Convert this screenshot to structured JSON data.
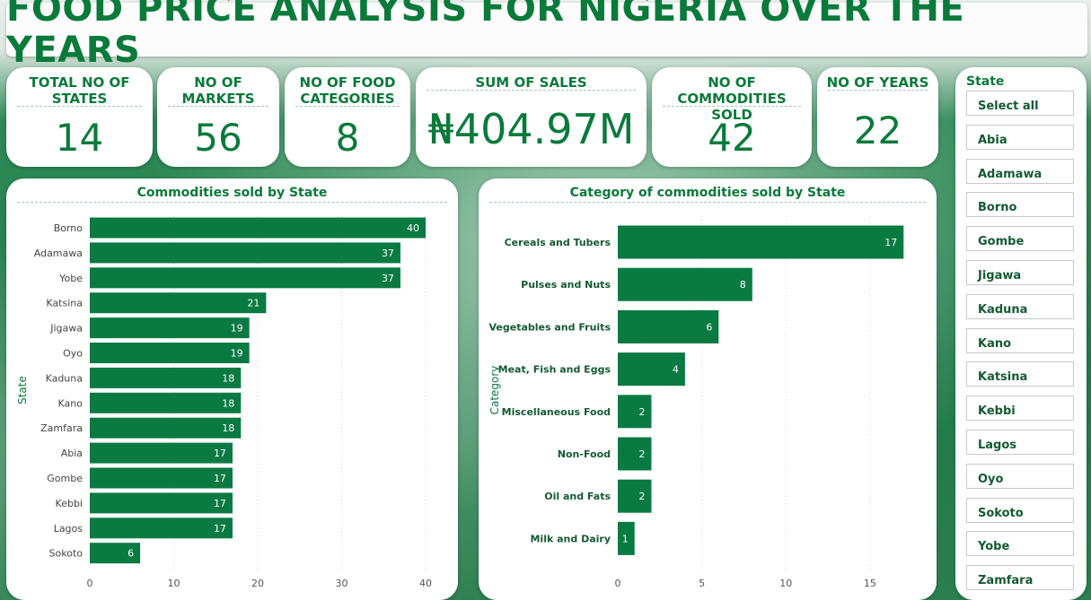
{
  "title": "FOOD PRICE ANALYSIS FOR NIGERIA OVER THE YEARS",
  "kpis": [
    {
      "label": "TOTAL NO OF STATES",
      "value": "14"
    },
    {
      "label": "NO OF MARKETS",
      "value": "56"
    },
    {
      "label": "NO OF FOOD CATEGORIES",
      "value": "8"
    },
    {
      "label": "SUM OF SALES",
      "value": "₦404.97M"
    },
    {
      "label": "NO OF COMMODITIES SOLD",
      "value": "42"
    },
    {
      "label": "NO OF YEARS",
      "value": "22"
    }
  ],
  "slicer": {
    "title": "State",
    "items": [
      "Select all",
      "Abia",
      "Adamawa",
      "Borno",
      "Gombe",
      "Jigawa",
      "Kaduna",
      "Kano",
      "Katsina",
      "Kebbi",
      "Lagos",
      "Oyo",
      "Sokoto",
      "Yobe",
      "Zamfara"
    ]
  },
  "chart_data": [
    {
      "type": "bar",
      "orientation": "horizontal",
      "title": "Commodities sold by State",
      "ylabel": "State",
      "xlabel": "",
      "categories": [
        "Borno",
        "Adamawa",
        "Yobe",
        "Katsina",
        "Jigawa",
        "Oyo",
        "Kaduna",
        "Kano",
        "Zamfara",
        "Abia",
        "Gombe",
        "Kebbi",
        "Lagos",
        "Sokoto"
      ],
      "values": [
        40,
        37,
        37,
        21,
        19,
        19,
        18,
        18,
        18,
        17,
        17,
        17,
        17,
        6
      ],
      "xticks": [
        0,
        10,
        20,
        30,
        40
      ],
      "xlim": [
        0,
        40
      ],
      "bar_color": "#097a42",
      "grid": "vertical dotted"
    },
    {
      "type": "bar",
      "orientation": "horizontal",
      "title": "Category of commodities sold by State",
      "ylabel": "Category",
      "xlabel": "",
      "categories": [
        "Cereals and Tubers",
        "Pulses and Nuts",
        "Vegetables and Fruits",
        "Meat, Fish and Eggs",
        "Miscellaneous Food",
        "Non-Food",
        "Oil and Fats",
        "Milk and Dairy"
      ],
      "values": [
        17,
        8,
        6,
        4,
        2,
        2,
        2,
        1
      ],
      "xticks": [
        0,
        5,
        10,
        15
      ],
      "xlim": [
        0,
        18
      ],
      "bar_color": "#097a42",
      "grid": "vertical dotted"
    }
  ]
}
